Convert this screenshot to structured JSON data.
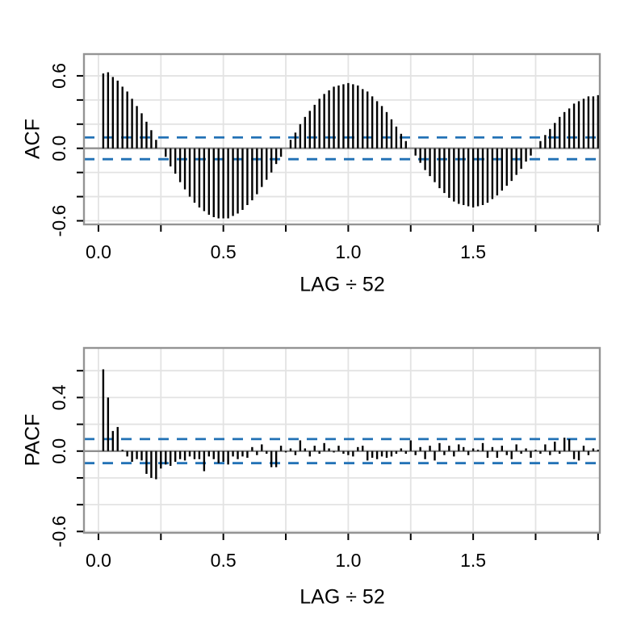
{
  "figure": {
    "background": "#ffffff",
    "n_lags": 104,
    "period": 52
  },
  "colors": {
    "bar": "#000000",
    "ci_line": "#2171b5",
    "grid": "#e3e3e3",
    "panel_border": "#949494",
    "zero_line": "#8f8f8f",
    "tick": "#000000",
    "text": "#000000"
  },
  "chart_data": [
    {
      "type": "bar",
      "name": "acf",
      "ylabel": "ACF",
      "xlabel": "LAG ÷ 52",
      "ci": 0.09,
      "xlim": [
        -0.058,
        2.007
      ],
      "ylim": [
        -0.63,
        0.78
      ],
      "grid_x": [
        0,
        0.25,
        0.5,
        0.75,
        1.0,
        1.25,
        1.5,
        1.75
      ],
      "grid_y": [
        -0.6,
        -0.4,
        -0.2,
        0.2,
        0.4,
        0.6
      ],
      "x_tick_positions": [
        0,
        0.25,
        0.5,
        0.75,
        1.0,
        1.25,
        1.5,
        1.75,
        2.0
      ],
      "x_tick_labels": [
        {
          "pos": 0,
          "label": "0.0"
        },
        {
          "pos": 0.5,
          "label": "0.5"
        },
        {
          "pos": 1.0,
          "label": "1.0"
        },
        {
          "pos": 1.5,
          "label": "1.5"
        }
      ],
      "y_tick_positions": [
        -0.6,
        -0.4,
        -0.2,
        0,
        0.2,
        0.4,
        0.6
      ],
      "y_tick_labels": [
        {
          "pos": 0.6,
          "label": "0.6"
        },
        {
          "pos": 0.0,
          "label": "0.0"
        },
        {
          "pos": -0.6,
          "label": "-0.6"
        }
      ],
      "values": [
        0.62,
        0.63,
        0.59,
        0.56,
        0.51,
        0.47,
        0.41,
        0.35,
        0.29,
        0.22,
        0.15,
        0.07,
        0.0,
        -0.07,
        -0.15,
        -0.21,
        -0.28,
        -0.34,
        -0.4,
        -0.45,
        -0.49,
        -0.52,
        -0.55,
        -0.57,
        -0.58,
        -0.58,
        -0.58,
        -0.56,
        -0.54,
        -0.51,
        -0.47,
        -0.43,
        -0.38,
        -0.32,
        -0.26,
        -0.2,
        -0.13,
        -0.07,
        0.0,
        0.07,
        0.13,
        0.2,
        0.26,
        0.31,
        0.36,
        0.41,
        0.45,
        0.48,
        0.51,
        0.52,
        0.53,
        0.54,
        0.53,
        0.52,
        0.49,
        0.47,
        0.43,
        0.39,
        0.35,
        0.3,
        0.24,
        0.18,
        0.12,
        0.06,
        0.0,
        -0.06,
        -0.12,
        -0.18,
        -0.23,
        -0.28,
        -0.33,
        -0.37,
        -0.41,
        -0.44,
        -0.46,
        -0.47,
        -0.48,
        -0.49,
        -0.48,
        -0.47,
        -0.45,
        -0.42,
        -0.39,
        -0.35,
        -0.31,
        -0.27,
        -0.22,
        -0.17,
        -0.11,
        -0.06,
        0.0,
        0.06,
        0.11,
        0.16,
        0.21,
        0.26,
        0.3,
        0.33,
        0.37,
        0.39,
        0.41,
        0.43,
        0.43,
        0.44
      ]
    },
    {
      "type": "bar",
      "name": "pacf",
      "ylabel": "PACF",
      "xlabel": "LAG ÷ 52",
      "ci": 0.09,
      "xlim": [
        -0.058,
        2.007
      ],
      "ylim": [
        -0.61,
        0.77
      ],
      "grid_x": [
        0,
        0.25,
        0.5,
        0.75,
        1.0,
        1.25,
        1.5,
        1.75
      ],
      "grid_y": [
        -0.6,
        -0.4,
        -0.2,
        0.2,
        0.4,
        0.6
      ],
      "x_tick_positions": [
        0,
        0.25,
        0.5,
        0.75,
        1.0,
        1.25,
        1.5,
        1.75,
        2.0
      ],
      "x_tick_labels": [
        {
          "pos": 0,
          "label": "0.0"
        },
        {
          "pos": 0.5,
          "label": "0.5"
        },
        {
          "pos": 1.0,
          "label": "1.0"
        },
        {
          "pos": 1.5,
          "label": "1.5"
        }
      ],
      "y_tick_positions": [
        -0.6,
        -0.4,
        -0.2,
        0,
        0.2,
        0.4,
        0.6
      ],
      "y_tick_labels": [
        {
          "pos": 0.4,
          "label": "0.4"
        },
        {
          "pos": 0.0,
          "label": "0.0"
        },
        {
          "pos": -0.6,
          "label": "-0.6"
        }
      ],
      "values": [
        0.61,
        0.4,
        0.15,
        0.18,
        0.01,
        -0.04,
        -0.08,
        -0.06,
        -0.07,
        -0.17,
        -0.2,
        -0.21,
        -0.13,
        -0.1,
        -0.11,
        -0.08,
        -0.06,
        -0.07,
        -0.04,
        -0.06,
        -0.06,
        -0.15,
        -0.04,
        -0.06,
        -0.09,
        -0.08,
        -0.1,
        -0.04,
        -0.06,
        -0.04,
        -0.05,
        0.03,
        -0.03,
        0.05,
        -0.02,
        -0.12,
        -0.12,
        0.04,
        -0.01,
        0.02,
        -0.03,
        0.08,
        0.02,
        -0.04,
        0.04,
        -0.02,
        0.06,
        0.02,
        -0.01,
        0.04,
        -0.02,
        -0.03,
        -0.04,
        0.03,
        0.04,
        -0.07,
        -0.05,
        -0.06,
        -0.04,
        -0.05,
        -0.04,
        -0.02,
        0.02,
        -0.02,
        0.08,
        -0.03,
        0.03,
        -0.06,
        0.04,
        -0.07,
        0.06,
        -0.03,
        0.04,
        -0.04,
        0.05,
        0.03,
        -0.03,
        0.02,
        0.01,
        0.06,
        -0.05,
        0.03,
        -0.05,
        0.04,
        -0.03,
        -0.06,
        0.05,
        -0.02,
        0.02,
        -0.05,
        0.01,
        -0.02,
        0.05,
        -0.03,
        0.07,
        -0.02,
        0.1,
        0.09,
        -0.06,
        -0.07,
        0.04,
        -0.03,
        0.02,
        0.01
      ]
    }
  ]
}
